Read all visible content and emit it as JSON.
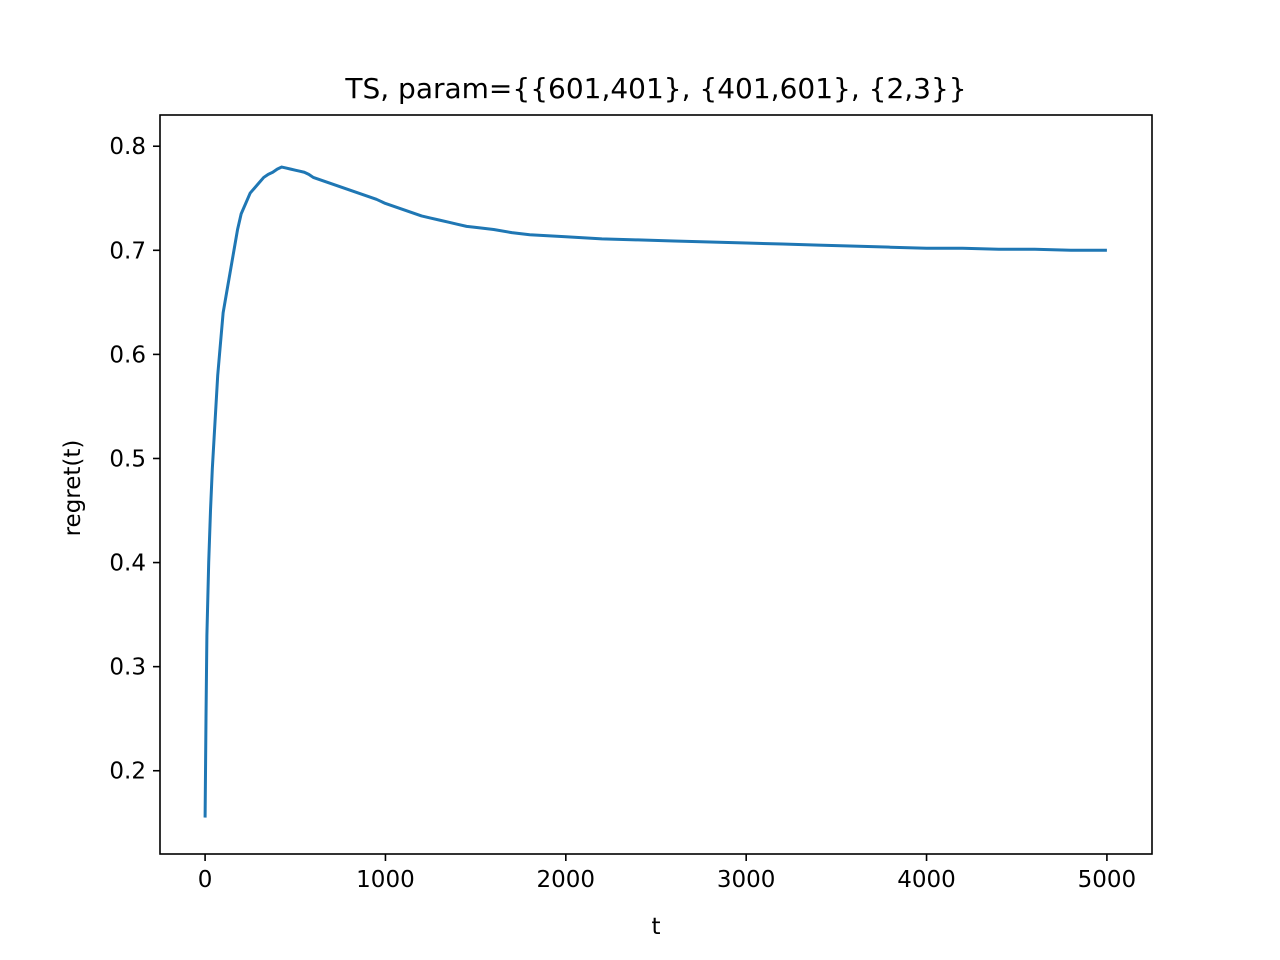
{
  "chart_data": {
    "type": "line",
    "title": "TS, param={{601,401}, {401,601}, {2,3}}",
    "xlabel": "t",
    "ylabel": "regret(t)",
    "xlim": [
      -250,
      5250
    ],
    "ylim": [
      0.12,
      0.83
    ],
    "xticks": [
      0,
      1000,
      2000,
      3000,
      4000,
      5000
    ],
    "xtick_labels": [
      "0",
      "1000",
      "2000",
      "3000",
      "4000",
      "5000"
    ],
    "yticks": [
      0.2,
      0.3,
      0.4,
      0.5,
      0.6,
      0.7,
      0.8
    ],
    "ytick_labels": [
      "0.2",
      "0.3",
      "0.4",
      "0.5",
      "0.6",
      "0.7",
      "0.8"
    ],
    "grid": false,
    "series": [
      {
        "color": "#1f77b4",
        "x": [
          0,
          5,
          10,
          20,
          30,
          40,
          50,
          60,
          70,
          80,
          90,
          100,
          120,
          140,
          160,
          180,
          200,
          225,
          250,
          275,
          300,
          325,
          350,
          375,
          400,
          425,
          450,
          475,
          500,
          525,
          550,
          575,
          600,
          650,
          700,
          750,
          800,
          850,
          900,
          950,
          1000,
          1050,
          1100,
          1150,
          1200,
          1250,
          1300,
          1350,
          1400,
          1450,
          1500,
          1600,
          1700,
          1800,
          1900,
          2000,
          2200,
          2400,
          2600,
          2800,
          3000,
          3200,
          3400,
          3600,
          3800,
          4000,
          4200,
          4400,
          4600,
          4800,
          5000
        ],
        "y": [
          0.155,
          0.25,
          0.33,
          0.4,
          0.45,
          0.49,
          0.52,
          0.55,
          0.58,
          0.6,
          0.62,
          0.64,
          0.66,
          0.68,
          0.7,
          0.72,
          0.735,
          0.745,
          0.755,
          0.76,
          0.765,
          0.77,
          0.773,
          0.775,
          0.778,
          0.78,
          0.779,
          0.778,
          0.777,
          0.776,
          0.775,
          0.773,
          0.77,
          0.767,
          0.764,
          0.761,
          0.758,
          0.755,
          0.752,
          0.749,
          0.745,
          0.742,
          0.739,
          0.736,
          0.733,
          0.731,
          0.729,
          0.727,
          0.725,
          0.723,
          0.722,
          0.72,
          0.717,
          0.715,
          0.714,
          0.713,
          0.711,
          0.71,
          0.709,
          0.708,
          0.707,
          0.706,
          0.705,
          0.704,
          0.703,
          0.702,
          0.702,
          0.701,
          0.701,
          0.7,
          0.7
        ]
      }
    ]
  }
}
